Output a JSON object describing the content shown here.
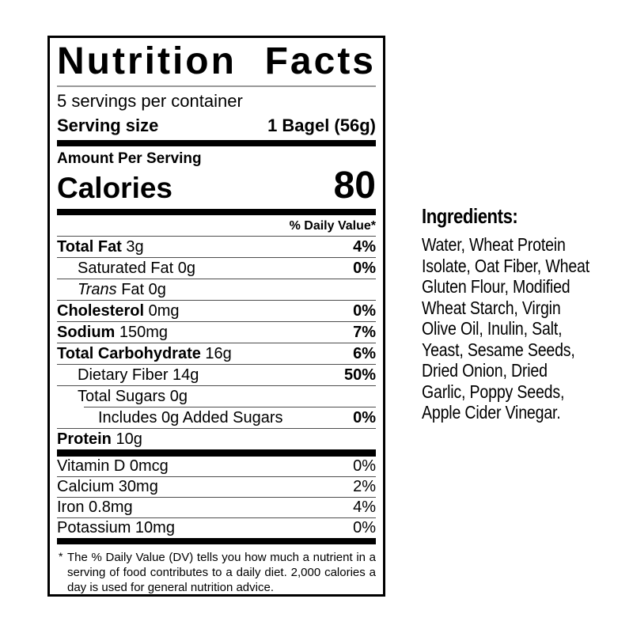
{
  "colors": {
    "background": "#ffffff",
    "text": "#000000",
    "thick_bar": "#000000",
    "hairline": "#4d4d4d",
    "title_rule": "#999999"
  },
  "nutrition_label": {
    "title_word_1": "Nutrition",
    "title_word_2": "Facts",
    "servings_per_container": "5 servings per container",
    "serving_size_label": "Serving size",
    "serving_size_value": "1 Bagel (56g)",
    "amount_per_serving_label": "Amount Per Serving",
    "calories_label": "Calories",
    "calories_value": "80",
    "daily_value_header": "% Daily Value*",
    "nutrients": [
      {
        "name": "Total Fat",
        "amount": "3g",
        "dv": "4%",
        "bold": true,
        "indent": 0
      },
      {
        "name": "Saturated Fat",
        "amount": "0g",
        "dv": "0%",
        "bold": false,
        "indent": 1
      },
      {
        "name_italic": "Trans",
        "name": " Fat",
        "amount": "0g",
        "dv": "",
        "bold": false,
        "indent": 1
      },
      {
        "name": "Cholesterol",
        "amount": "0mg",
        "dv": "0%",
        "bold": true,
        "indent": 0
      },
      {
        "name": "Sodium",
        "amount": "150mg",
        "dv": "7%",
        "bold": true,
        "indent": 0
      },
      {
        "name": "Total Carbohydrate",
        "amount": "16g",
        "dv": "6%",
        "bold": true,
        "indent": 0
      },
      {
        "name": "Dietary Fiber",
        "amount": "14g",
        "dv": "50%",
        "bold": false,
        "indent": 1
      },
      {
        "name": "Total Sugars",
        "amount": "0g",
        "dv": "",
        "bold": false,
        "indent": 1
      },
      {
        "name": "Includes 0g Added Sugars",
        "amount": "",
        "dv": "0%",
        "bold": false,
        "indent": 2,
        "separator_indented": true
      },
      {
        "name": "Protein",
        "amount": "10g",
        "dv": "",
        "bold": true,
        "indent": 0
      }
    ],
    "micronutrients": [
      {
        "name": "Vitamin D",
        "amount": "0mcg",
        "dv": "0%"
      },
      {
        "name": "Calcium",
        "amount": "30mg",
        "dv": "2%"
      },
      {
        "name": "Iron",
        "amount": "0.8mg",
        "dv": "4%"
      },
      {
        "name": "Potassium",
        "amount": "10mg",
        "dv": "0%"
      }
    ],
    "footnote_marker": "*",
    "footnote_text": "The % Daily Value (DV) tells you how much a nutrient in a serving of food contributes to a daily diet. 2,000 calories a day is used for general nutrition advice."
  },
  "ingredients": {
    "heading": "Ingredients:",
    "text": "Water, Wheat Protein Isolate, Oat Fiber, Wheat Gluten Flour, Modified Wheat Starch, Virgin Olive Oil, Inulin, Salt, Yeast, Sesame Seeds, Dried Onion, Dried Garlic, Poppy Seeds, Apple Cider Vinegar."
  }
}
